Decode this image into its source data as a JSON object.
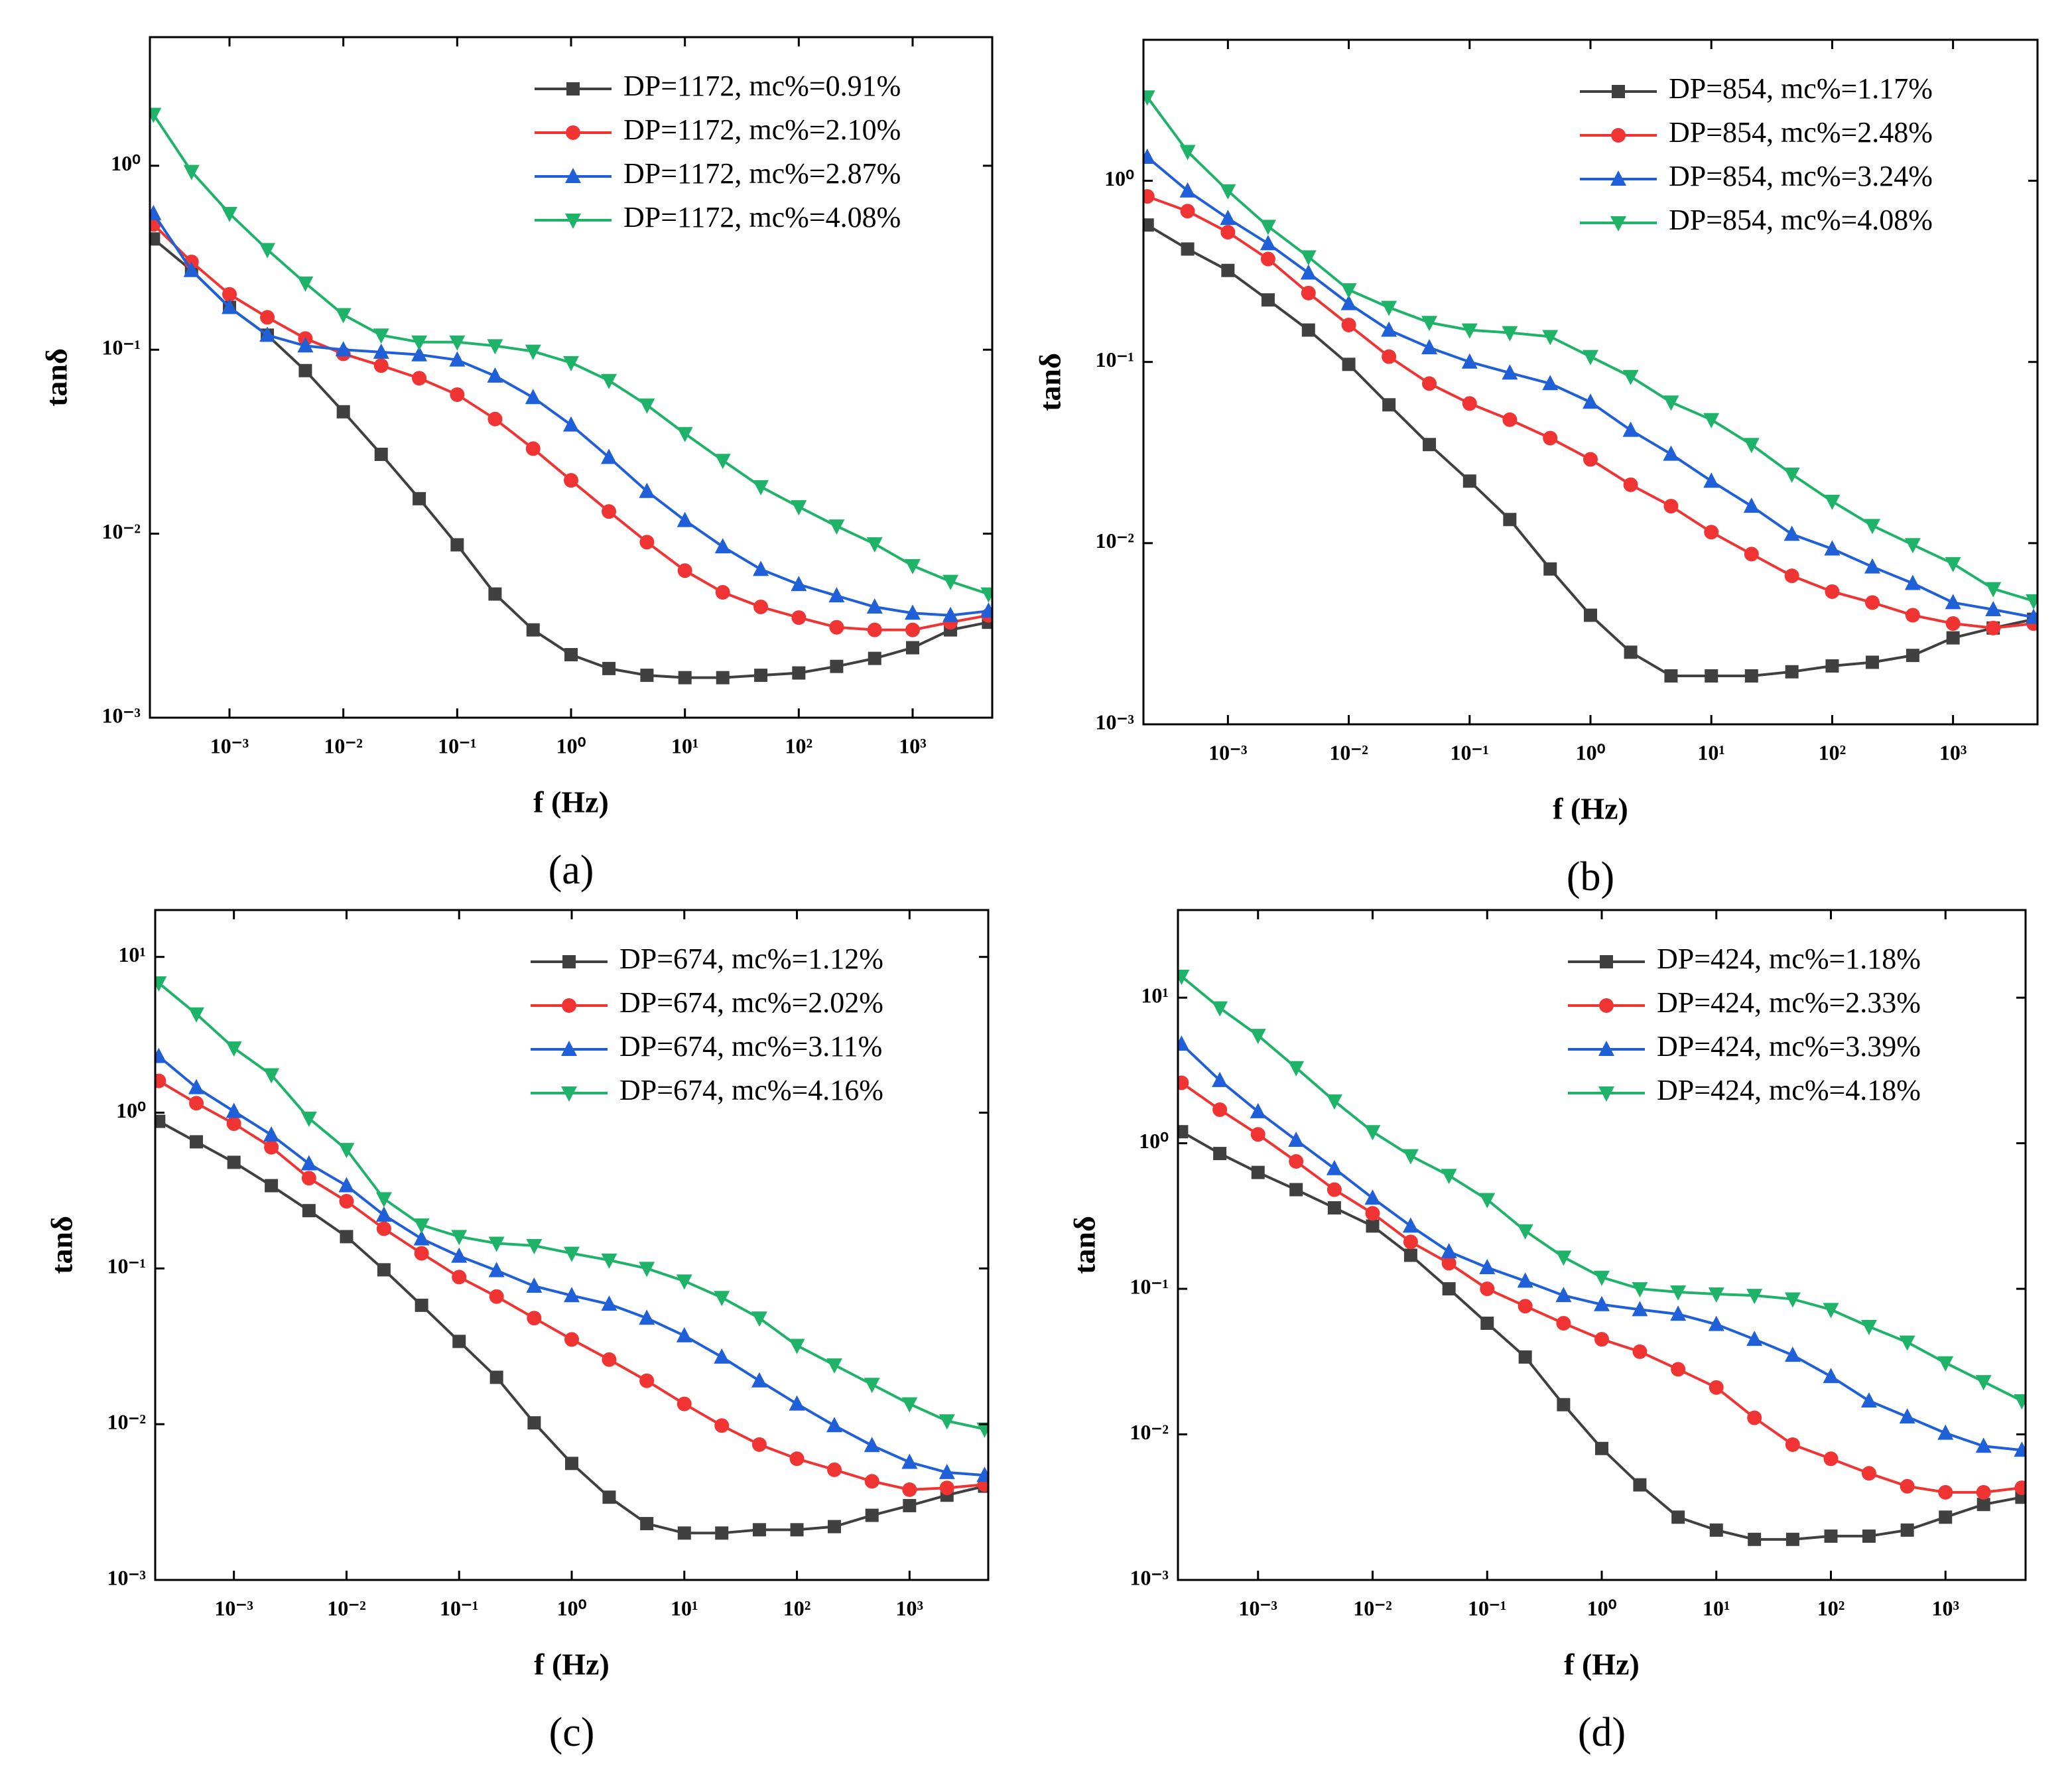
{
  "chart_data": [
    {
      "type": "line",
      "caption": "(a)",
      "xlabel": "f (Hz)",
      "ylabel": "tanδ",
      "xlog": true,
      "ylog": true,
      "legend": "upper right",
      "x": [
        0.000215,
        0.000464,
        0.001,
        0.00215,
        0.00464,
        0.01,
        0.0215,
        0.0464,
        0.1,
        0.215,
        0.464,
        1,
        2.15,
        4.64,
        10,
        21.5,
        46.4,
        100,
        215,
        464,
        1000,
        2150,
        4640
      ],
      "xlim": [
        0.0002,
        5000
      ],
      "ylim": [
        0.001,
        5
      ],
      "xticks": [
        {
          "value": 0.001,
          "label": "10⁻³"
        },
        {
          "value": 0.01,
          "label": "10⁻²"
        },
        {
          "value": 0.1,
          "label": "10⁻¹"
        },
        {
          "value": 1,
          "label": "10⁰"
        },
        {
          "value": 10,
          "label": "10¹"
        },
        {
          "value": 100,
          "label": "10²"
        },
        {
          "value": 1000,
          "label": "10³"
        }
      ],
      "yticks": [
        {
          "value": 0.001,
          "label": "10⁻³"
        },
        {
          "value": 0.01,
          "label": "10⁻²"
        },
        {
          "value": 0.1,
          "label": "10⁻¹"
        },
        {
          "value": 1,
          "label": "10⁰"
        }
      ],
      "series": [
        {
          "name": "DP=1172, mc%=0.91%",
          "color": "#404040",
          "marker": "square",
          "values": [
            0.4,
            0.27,
            0.17,
            0.12,
            0.077,
            0.046,
            0.027,
            0.0155,
            0.0087,
            0.0047,
            0.003,
            0.0022,
            0.00185,
            0.0017,
            0.00165,
            0.00165,
            0.0017,
            0.00175,
            0.0019,
            0.0021,
            0.0024,
            0.003,
            0.0033
          ]
        },
        {
          "name": "DP=1172, mc%=2.10%",
          "color": "#f03434",
          "marker": "circle",
          "values": [
            0.48,
            0.3,
            0.2,
            0.15,
            0.115,
            0.095,
            0.082,
            0.07,
            0.057,
            0.042,
            0.029,
            0.0195,
            0.0132,
            0.009,
            0.0063,
            0.0048,
            0.004,
            0.0035,
            0.0031,
            0.003,
            0.003,
            0.0033,
            0.0036
          ]
        },
        {
          "name": "DP=1172, mc%=2.87%",
          "color": "#1f5fd8",
          "marker": "triangle",
          "values": [
            0.55,
            0.27,
            0.17,
            0.12,
            0.105,
            0.1,
            0.097,
            0.094,
            0.088,
            0.072,
            0.055,
            0.039,
            0.026,
            0.017,
            0.0118,
            0.0085,
            0.0064,
            0.0053,
            0.0046,
            0.004,
            0.0037,
            0.0036,
            0.0038
          ]
        },
        {
          "name": "DP=1172, mc%=4.08%",
          "color": "#1fb36a",
          "marker": "triangle-down",
          "values": [
            1.9,
            0.93,
            0.55,
            0.35,
            0.23,
            0.155,
            0.12,
            0.11,
            0.11,
            0.105,
            0.098,
            0.085,
            0.068,
            0.05,
            0.035,
            0.025,
            0.018,
            0.014,
            0.011,
            0.0088,
            0.0067,
            0.0055,
            0.0047
          ]
        }
      ]
    },
    {
      "type": "line",
      "caption": "(b)",
      "xlabel": "f (Hz)",
      "ylabel": "tanδ",
      "xlog": true,
      "ylog": true,
      "legend": "upper right",
      "x": [
        0.000215,
        0.000464,
        0.001,
        0.00215,
        0.00464,
        0.01,
        0.0215,
        0.0464,
        0.1,
        0.215,
        0.464,
        1,
        2.15,
        4.64,
        10,
        21.5,
        46.4,
        100,
        215,
        464,
        1000,
        2150,
        4640
      ],
      "xlim": [
        0.0002,
        5000
      ],
      "ylim": [
        0.001,
        6
      ],
      "xticks": [
        {
          "value": 0.001,
          "label": "10⁻³"
        },
        {
          "value": 0.01,
          "label": "10⁻²"
        },
        {
          "value": 0.1,
          "label": "10⁻¹"
        },
        {
          "value": 1,
          "label": "10⁰"
        },
        {
          "value": 10,
          "label": "10¹"
        },
        {
          "value": 100,
          "label": "10²"
        },
        {
          "value": 1000,
          "label": "10³"
        }
      ],
      "yticks": [
        {
          "value": 0.001,
          "label": "10⁻³"
        },
        {
          "value": 0.01,
          "label": "10⁻²"
        },
        {
          "value": 0.1,
          "label": "10⁻¹"
        },
        {
          "value": 1,
          "label": "10⁰"
        }
      ],
      "series": [
        {
          "name": "DP=854, mc%=1.17%",
          "color": "#404040",
          "marker": "square",
          "values": [
            0.57,
            0.42,
            0.32,
            0.22,
            0.15,
            0.097,
            0.058,
            0.035,
            0.022,
            0.0135,
            0.0072,
            0.004,
            0.0025,
            0.00185,
            0.00185,
            0.00185,
            0.00195,
            0.0021,
            0.0022,
            0.0024,
            0.003,
            0.0034,
            0.0038
          ]
        },
        {
          "name": "DP=854, mc%=2.48%",
          "color": "#f03434",
          "marker": "circle",
          "values": [
            0.82,
            0.68,
            0.52,
            0.37,
            0.24,
            0.16,
            0.107,
            0.076,
            0.059,
            0.048,
            0.038,
            0.029,
            0.021,
            0.016,
            0.0115,
            0.0087,
            0.0066,
            0.0054,
            0.0047,
            0.004,
            0.0036,
            0.0034,
            0.0036
          ]
        },
        {
          "name": "DP=854, mc%=3.24%",
          "color": "#1f5fd8",
          "marker": "triangle",
          "values": [
            1.35,
            0.88,
            0.62,
            0.45,
            0.31,
            0.21,
            0.15,
            0.12,
            0.1,
            0.087,
            0.076,
            0.06,
            0.042,
            0.031,
            0.022,
            0.016,
            0.0112,
            0.0093,
            0.0074,
            0.006,
            0.0047,
            0.0043,
            0.0039
          ]
        },
        {
          "name": "DP=854, mc%=4.08%",
          "color": "#1fb36a",
          "marker": "triangle-down",
          "values": [
            2.9,
            1.45,
            0.88,
            0.56,
            0.38,
            0.25,
            0.2,
            0.165,
            0.15,
            0.145,
            0.138,
            0.107,
            0.083,
            0.06,
            0.048,
            0.035,
            0.024,
            0.017,
            0.0125,
            0.0098,
            0.0077,
            0.0056,
            0.0048
          ]
        }
      ]
    },
    {
      "type": "line",
      "caption": "(c)",
      "xlabel": "f (Hz)",
      "ylabel": "tanδ",
      "xlog": true,
      "ylog": true,
      "legend": "upper right",
      "x": [
        0.000215,
        0.000464,
        0.001,
        0.00215,
        0.00464,
        0.01,
        0.0215,
        0.0464,
        0.1,
        0.215,
        0.464,
        1,
        2.15,
        4.64,
        10,
        21.5,
        46.4,
        100,
        215,
        464,
        1000,
        2150,
        4640
      ],
      "xlim": [
        0.0002,
        5000
      ],
      "ylim": [
        0.001,
        20
      ],
      "xticks": [
        {
          "value": 0.001,
          "label": "10⁻³"
        },
        {
          "value": 0.01,
          "label": "10⁻²"
        },
        {
          "value": 0.1,
          "label": "10⁻¹"
        },
        {
          "value": 1,
          "label": "10⁰"
        },
        {
          "value": 10,
          "label": "10¹"
        },
        {
          "value": 100,
          "label": "10²"
        },
        {
          "value": 1000,
          "label": "10³"
        }
      ],
      "yticks": [
        {
          "value": 0.001,
          "label": "10⁻³"
        },
        {
          "value": 0.01,
          "label": "10⁻²"
        },
        {
          "value": 0.1,
          "label": "10⁻¹"
        },
        {
          "value": 1,
          "label": "10⁰"
        },
        {
          "value": 10,
          "label": "10¹"
        }
      ],
      "series": [
        {
          "name": "DP=674, mc%=1.12%",
          "color": "#404040",
          "marker": "square",
          "values": [
            0.88,
            0.65,
            0.48,
            0.34,
            0.235,
            0.16,
            0.098,
            0.058,
            0.034,
            0.02,
            0.0102,
            0.0056,
            0.0034,
            0.0023,
            0.002,
            0.002,
            0.0021,
            0.0021,
            0.0022,
            0.0026,
            0.003,
            0.0035,
            0.004
          ]
        },
        {
          "name": "DP=674, mc%=2.02%",
          "color": "#f03434",
          "marker": "circle",
          "values": [
            1.6,
            1.15,
            0.85,
            0.6,
            0.38,
            0.27,
            0.18,
            0.125,
            0.088,
            0.066,
            0.048,
            0.035,
            0.026,
            0.019,
            0.0135,
            0.0098,
            0.0074,
            0.006,
            0.0051,
            0.0043,
            0.0038,
            0.0039,
            0.0041
          ]
        },
        {
          "name": "DP=674, mc%=3.11%",
          "color": "#1f5fd8",
          "marker": "triangle",
          "values": [
            2.3,
            1.45,
            1.02,
            0.72,
            0.47,
            0.34,
            0.22,
            0.155,
            0.12,
            0.097,
            0.077,
            0.067,
            0.059,
            0.048,
            0.037,
            0.027,
            0.019,
            0.0135,
            0.0098,
            0.0073,
            0.0057,
            0.0049,
            0.0047
          ]
        },
        {
          "name": "DP=674, mc%=4.16%",
          "color": "#1fb36a",
          "marker": "triangle-down",
          "values": [
            6.8,
            4.3,
            2.6,
            1.75,
            0.92,
            0.58,
            0.28,
            0.19,
            0.16,
            0.145,
            0.14,
            0.125,
            0.113,
            0.1,
            0.083,
            0.065,
            0.048,
            0.032,
            0.024,
            0.018,
            0.0135,
            0.0105,
            0.0093
          ]
        }
      ]
    },
    {
      "type": "line",
      "caption": "(d)",
      "xlabel": "f (Hz)",
      "ylabel": "tanδ",
      "xlog": true,
      "ylog": true,
      "legend": "upper right",
      "x": [
        0.000215,
        0.000464,
        0.001,
        0.00215,
        0.00464,
        0.01,
        0.0215,
        0.0464,
        0.1,
        0.215,
        0.464,
        1,
        2.15,
        4.64,
        10,
        21.5,
        46.4,
        100,
        215,
        464,
        1000,
        2150,
        4640
      ],
      "xlim": [
        0.0002,
        5000
      ],
      "ylim": [
        0.001,
        40
      ],
      "xticks": [
        {
          "value": 0.001,
          "label": "10⁻³"
        },
        {
          "value": 0.01,
          "label": "10⁻²"
        },
        {
          "value": 0.1,
          "label": "10⁻¹"
        },
        {
          "value": 1,
          "label": "10⁰"
        },
        {
          "value": 10,
          "label": "10¹"
        },
        {
          "value": 100,
          "label": "10²"
        },
        {
          "value": 1000,
          "label": "10³"
        }
      ],
      "yticks": [
        {
          "value": 0.001,
          "label": "10⁻³"
        },
        {
          "value": 0.01,
          "label": "10⁻²"
        },
        {
          "value": 0.1,
          "label": "10⁻¹"
        },
        {
          "value": 1,
          "label": "10⁰"
        },
        {
          "value": 10,
          "label": "10¹"
        }
      ],
      "series": [
        {
          "name": "DP=424, mc%=1.18%",
          "color": "#404040",
          "marker": "square",
          "values": [
            1.2,
            0.85,
            0.63,
            0.48,
            0.36,
            0.27,
            0.17,
            0.1,
            0.058,
            0.034,
            0.016,
            0.008,
            0.0045,
            0.0027,
            0.0022,
            0.0019,
            0.0019,
            0.002,
            0.002,
            0.0022,
            0.0027,
            0.0033,
            0.0037
          ]
        },
        {
          "name": "DP=424, mc%=2.33%",
          "color": "#f03434",
          "marker": "circle",
          "values": [
            2.6,
            1.7,
            1.15,
            0.75,
            0.48,
            0.33,
            0.21,
            0.15,
            0.1,
            0.076,
            0.058,
            0.045,
            0.037,
            0.028,
            0.021,
            0.013,
            0.0085,
            0.0068,
            0.0054,
            0.0044,
            0.004,
            0.004,
            0.0043
          ]
        },
        {
          "name": "DP=424, mc%=3.39%",
          "color": "#1f5fd8",
          "marker": "triangle",
          "values": [
            4.8,
            2.7,
            1.65,
            1.05,
            0.67,
            0.42,
            0.27,
            0.18,
            0.14,
            0.113,
            0.09,
            0.078,
            0.072,
            0.067,
            0.057,
            0.045,
            0.035,
            0.025,
            0.017,
            0.0132,
            0.0102,
            0.0083,
            0.0078
          ]
        },
        {
          "name": "DP=424, mc%=4.18%",
          "color": "#1fb36a",
          "marker": "triangle-down",
          "values": [
            14,
            8.5,
            5.5,
            3.3,
            1.95,
            1.2,
            0.82,
            0.6,
            0.41,
            0.25,
            0.165,
            0.12,
            0.1,
            0.095,
            0.092,
            0.09,
            0.085,
            0.072,
            0.055,
            0.043,
            0.031,
            0.023,
            0.017
          ]
        }
      ]
    }
  ]
}
